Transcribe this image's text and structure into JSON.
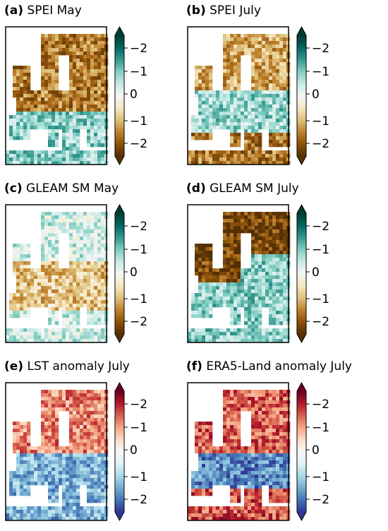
{
  "figure": {
    "panels": [
      {
        "label": "(a)",
        "title": "SPEI May",
        "cmap": "BrBG",
        "pattern": "dry_north"
      },
      {
        "label": "(b)",
        "title": "SPEI July",
        "cmap": "BrBG",
        "pattern": "dry_south"
      },
      {
        "label": "(c)",
        "title": "GLEAM SM May",
        "cmap": "BrBG",
        "pattern": "dry_center"
      },
      {
        "label": "(d)",
        "title": "GLEAM SM July",
        "cmap": "BrBG",
        "pattern": "dry_northwest"
      },
      {
        "label": "(e)",
        "title": "LST anomaly July",
        "cmap": "RdBu",
        "pattern": "warm_north"
      },
      {
        "label": "(f)",
        "title": "ERA5-Land anomaly July",
        "cmap": "RdBu",
        "pattern": "warm_north_strong"
      }
    ],
    "colorbar_ticks": [
      "−2",
      "−1",
      "0",
      "−1",
      "−2"
    ],
    "colormaps": {
      "BrBG": [
        "#543005",
        "#8c510a",
        "#bf812d",
        "#dfc27d",
        "#f6e8c3",
        "#f5f5f5",
        "#c7eae5",
        "#80cdc1",
        "#35978f",
        "#01665e",
        "#003c30"
      ],
      "RdBu": [
        "#313695",
        "#4575b4",
        "#74add1",
        "#abd9e9",
        "#e0f3f8",
        "#f7f7f7",
        "#fddbc7",
        "#f4a582",
        "#d6604d",
        "#b2182b",
        "#67001f"
      ]
    }
  },
  "chart_data": [
    {
      "type": "heatmap",
      "title": "(a) SPEI May",
      "colorbar_ticks": [
        "−2",
        "−1",
        "0",
        "−1",
        "−2"
      ],
      "colorbar_range": [
        -2.5,
        2.5
      ],
      "colormap": "brown-white-teal"
    },
    {
      "type": "heatmap",
      "title": "(b) SPEI July",
      "colorbar_ticks": [
        "−2",
        "−1",
        "0",
        "−1",
        "−2"
      ],
      "colorbar_range": [
        -2.5,
        2.5
      ],
      "colormap": "brown-white-teal"
    },
    {
      "type": "heatmap",
      "title": "(c) GLEAM SM May",
      "colorbar_ticks": [
        "−2",
        "−1",
        "0",
        "−1",
        "−2"
      ],
      "colorbar_range": [
        -2.5,
        2.5
      ],
      "colormap": "brown-white-teal"
    },
    {
      "type": "heatmap",
      "title": "(d) GLEAM SM July",
      "colorbar_ticks": [
        "−2",
        "−1",
        "0",
        "−1",
        "−2"
      ],
      "colorbar_range": [
        -2.5,
        2.5
      ],
      "colormap": "brown-white-teal"
    },
    {
      "type": "heatmap",
      "title": "(e) LST anomaly July",
      "colorbar_ticks": [
        "−2",
        "−1",
        "0",
        "−1",
        "−2"
      ],
      "colorbar_range": [
        -2.5,
        2.5
      ],
      "colormap": "blue-white-red"
    },
    {
      "type": "heatmap",
      "title": "(f) ERA5-Land anomaly July",
      "colorbar_ticks": [
        "−2",
        "−1",
        "0",
        "−1",
        "−2"
      ],
      "colorbar_range": [
        -2.5,
        2.5
      ],
      "colormap": "blue-white-red"
    }
  ]
}
